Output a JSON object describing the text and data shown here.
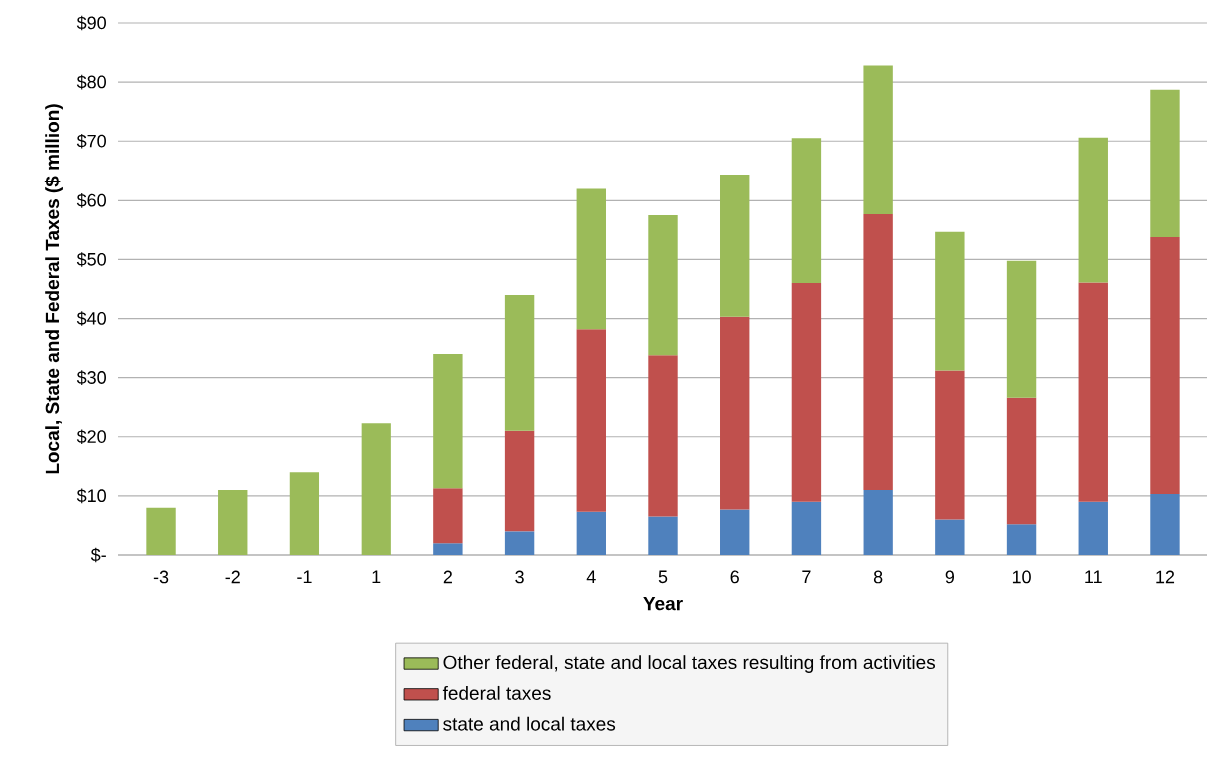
{
  "chart_data": {
    "type": "bar",
    "stacked": true,
    "xlabel": "Year",
    "ylabel": "Local, State and Federal Taxes ($ million)",
    "categories": [
      "-3",
      "-2",
      "-1",
      "1",
      "2",
      "3",
      "4",
      "5",
      "6",
      "7",
      "8",
      "9",
      "10",
      "11",
      "12"
    ],
    "series": [
      {
        "name": "state and local taxes",
        "color": "#4f81bd",
        "values": [
          null,
          null,
          null,
          null,
          2,
          4,
          7.3,
          6.5,
          7.7,
          9,
          11,
          6,
          5.2,
          9,
          10.3
        ]
      },
      {
        "name": "federal taxes",
        "color": "#c0504d",
        "values": [
          null,
          null,
          null,
          null,
          9.3,
          17,
          30.9,
          27.3,
          32.6,
          37,
          46.7,
          25.2,
          21.4,
          37.1,
          43.5
        ]
      },
      {
        "name": "Other federal, state and local taxes resulting from activities",
        "color": "#9bbb59",
        "values": [
          8,
          11,
          14,
          22.3,
          22.7,
          23,
          23.8,
          23.7,
          24,
          24.5,
          25.1,
          23.5,
          23.2,
          24.5,
          24.9
        ]
      }
    ],
    "ylim": [
      0,
      90
    ],
    "yticks": [
      {
        "value": 0,
        "label": "$-"
      },
      {
        "value": 10,
        "label": "$10"
      },
      {
        "value": 20,
        "label": "$20"
      },
      {
        "value": 30,
        "label": "$30"
      },
      {
        "value": 40,
        "label": "$40"
      },
      {
        "value": 50,
        "label": "$50"
      },
      {
        "value": 60,
        "label": "$60"
      },
      {
        "value": 70,
        "label": "$70"
      },
      {
        "value": 80,
        "label": "$80"
      },
      {
        "value": 90,
        "label": "$90"
      }
    ],
    "grid": "y",
    "legend": "bottom"
  }
}
